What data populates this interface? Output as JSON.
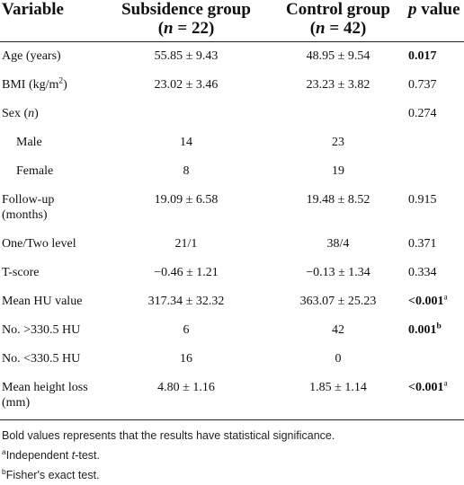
{
  "table": {
    "header": [
      [
        {
          "text": "Variable"
        }
      ],
      [
        {
          "text": "Subsidence group"
        },
        {
          "text": "(",
          "break_before": true
        },
        {
          "text": "n",
          "style": [
            "italic"
          ]
        },
        {
          "text": " = 22)"
        }
      ],
      [
        {
          "text": "Control group"
        },
        {
          "text": "(",
          "break_before": true
        },
        {
          "text": "n",
          "style": [
            "italic"
          ]
        },
        {
          "text": " = 42)"
        }
      ],
      [
        {
          "text": "p",
          "style": [
            "italic"
          ]
        },
        {
          "text": " value"
        }
      ]
    ],
    "rows": [
      {
        "cells": [
          "Age (years)",
          "55.85 ± 9.43",
          "48.95 ± 9.54",
          [
            {
              "text": "0.017",
              "style": [
                "bold"
              ]
            }
          ]
        ]
      },
      {
        "cells": [
          [
            {
              "text": "BMI (kg/m"
            },
            {
              "text": "2",
              "style": [
                "sup"
              ]
            },
            {
              "text": ")"
            }
          ],
          "23.02 ± 3.46",
          "23.23 ± 3.82",
          "0.737"
        ]
      },
      {
        "cells": [
          [
            {
              "text": "Sex ("
            },
            {
              "text": "n",
              "style": [
                "italic"
              ]
            },
            {
              "text": ")"
            }
          ],
          null,
          null,
          "0.274"
        ]
      },
      {
        "indent": true,
        "cells": [
          "Male",
          "14",
          "23",
          null
        ]
      },
      {
        "indent": true,
        "cells": [
          "Female",
          "8",
          "19",
          null
        ]
      },
      {
        "cells": [
          "Follow-up (months)",
          "19.09 ± 6.58",
          "19.48 ± 8.52",
          "0.915"
        ]
      },
      {
        "cells": [
          "One/Two level",
          "21/1",
          "38/4",
          "0.371"
        ]
      },
      {
        "cells": [
          "T-score",
          "−0.46 ± 1.21",
          "−0.13 ± 1.34",
          "0.334"
        ]
      },
      {
        "cells": [
          "Mean HU value",
          "317.34 ± 32.32",
          "363.07 ± 25.23",
          [
            {
              "text": "<0.001",
              "style": [
                "bold"
              ]
            },
            {
              "text": "a",
              "style": [
                "sup"
              ]
            }
          ]
        ]
      },
      {
        "cells": [
          "No. >330.5 HU",
          "6",
          "42",
          [
            {
              "text": "0.001",
              "style": [
                "bold"
              ]
            },
            {
              "text": "b",
              "style": [
                "bold",
                "sup"
              ]
            }
          ]
        ]
      },
      {
        "cells": [
          "No. <330.5 HU",
          "16",
          "0",
          null
        ]
      },
      {
        "cells": [
          "Mean height loss (mm)",
          "4.80 ± 1.16",
          "1.85 ± 1.14",
          [
            {
              "text": "<0.001",
              "style": [
                "bold"
              ]
            },
            {
              "text": "a",
              "style": [
                "sup"
              ]
            }
          ]
        ]
      }
    ],
    "footnotes": [
      [
        {
          "text": "Bold values represents that the results have statistical significance."
        }
      ],
      [
        {
          "text": "a",
          "style": [
            "sup"
          ]
        },
        {
          "text": "Independent "
        },
        {
          "text": "t",
          "style": [
            "italic"
          ]
        },
        {
          "text": "-test."
        }
      ],
      [
        {
          "text": "b",
          "style": [
            "sup"
          ]
        },
        {
          "text": "Fisher's exact test."
        }
      ]
    ]
  }
}
